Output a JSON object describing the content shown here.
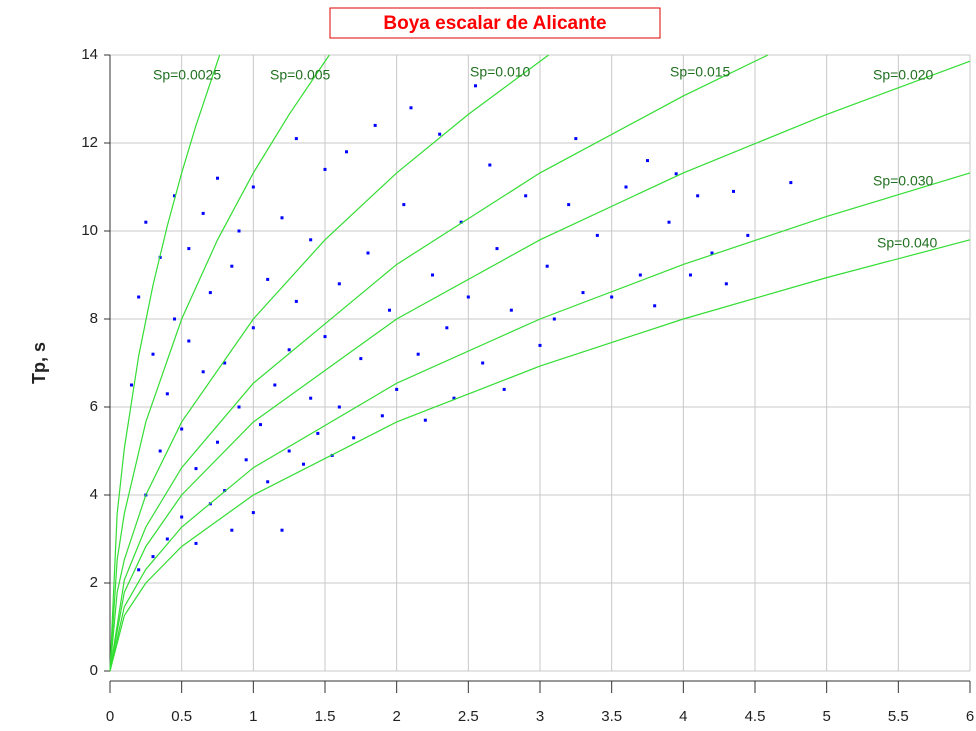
{
  "chart_data": {
    "type": "scatter",
    "title": "Boya escalar de Alicante",
    "y_label": "Tp, s",
    "xlim": [
      0,
      6
    ],
    "ylim": [
      0,
      14
    ],
    "xticks": [
      0,
      0.5,
      1,
      1.5,
      2,
      2.5,
      3,
      3.5,
      4,
      4.5,
      5,
      5.5,
      6
    ],
    "yticks": [
      0,
      2,
      4,
      6,
      8,
      10,
      12,
      14
    ],
    "grid": true,
    "color": "#0000ff",
    "x": [
      0.15,
      0.2,
      0.2,
      0.25,
      0.25,
      0.3,
      0.3,
      0.35,
      0.35,
      0.4,
      0.4,
      0.45,
      0.45,
      0.5,
      0.5,
      0.55,
      0.55,
      0.6,
      0.6,
      0.65,
      0.65,
      0.7,
      0.7,
      0.75,
      0.75,
      0.8,
      0.8,
      0.85,
      0.85,
      0.9,
      0.9,
      0.95,
      1.0,
      1.0,
      1.0,
      1.05,
      1.1,
      1.1,
      1.15,
      1.2,
      1.2,
      1.25,
      1.25,
      1.3,
      1.3,
      1.35,
      1.4,
      1.4,
      1.45,
      1.5,
      1.5,
      1.55,
      1.6,
      1.6,
      1.65,
      1.7,
      1.75,
      1.8,
      1.85,
      1.9,
      1.95,
      2.0,
      2.05,
      2.1,
      2.15,
      2.2,
      2.25,
      2.3,
      2.35,
      2.4,
      2.45,
      2.5,
      2.55,
      2.6,
      2.65,
      2.7,
      2.75,
      2.8,
      2.9,
      3.0,
      3.05,
      3.1,
      3.2,
      3.25,
      3.3,
      3.4,
      3.5,
      3.6,
      3.7,
      3.75,
      3.8,
      3.9,
      3.95,
      4.05,
      4.1,
      4.2,
      4.3,
      4.35,
      4.45,
      4.75
    ],
    "y": [
      6.5,
      2.3,
      8.5,
      4.0,
      10.2,
      2.6,
      7.2,
      5.0,
      9.4,
      3.0,
      6.3,
      8.0,
      10.8,
      3.5,
      5.5,
      7.5,
      9.6,
      2.9,
      4.6,
      6.8,
      10.4,
      3.8,
      8.6,
      5.2,
      11.2,
      4.1,
      7.0,
      9.2,
      3.2,
      6.0,
      10.0,
      4.8,
      3.6,
      7.8,
      11.0,
      5.6,
      8.9,
      4.3,
      6.5,
      3.2,
      10.3,
      5.0,
      7.3,
      12.1,
      8.4,
      4.7,
      6.2,
      9.8,
      5.4,
      7.6,
      11.4,
      4.9,
      8.8,
      6.0,
      11.8,
      5.3,
      7.1,
      9.5,
      12.4,
      5.8,
      8.2,
      6.4,
      10.6,
      12.8,
      7.2,
      5.7,
      9.0,
      12.2,
      7.8,
      6.2,
      10.2,
      8.5,
      13.3,
      7.0,
      11.5,
      9.6,
      6.4,
      8.2,
      10.8,
      7.4,
      9.2,
      8.0,
      10.6,
      12.1,
      8.6,
      9.9,
      8.5,
      11.0,
      9.0,
      11.6,
      8.3,
      10.2,
      11.3,
      9.0,
      10.8,
      9.5,
      8.8,
      10.9,
      9.9,
      11.1
    ],
    "curves": [
      {
        "name": "Sp=0.0025",
        "color": "#33dd33",
        "x": [
          0,
          0.05,
          0.1,
          0.2,
          0.3,
          0.4,
          0.5,
          0.6,
          0.765
        ],
        "y": [
          0,
          3.58,
          5.06,
          7.16,
          8.77,
          10.12,
          11.32,
          12.4,
          14.0
        ]
      },
      {
        "name": "Sp=0.005",
        "color": "#33dd33",
        "x": [
          0,
          0.05,
          0.1,
          0.25,
          0.5,
          0.75,
          1,
          1.25,
          1.53
        ],
        "y": [
          0,
          2.53,
          3.58,
          5.66,
          8.0,
          9.8,
          11.32,
          12.65,
          14.0
        ]
      },
      {
        "name": "Sp=0.010",
        "color": "#33dd33",
        "x": [
          0,
          0.05,
          0.1,
          0.25,
          0.5,
          1,
          1.5,
          2,
          2.5,
          3.06
        ],
        "y": [
          0,
          1.79,
          2.53,
          4.0,
          5.66,
          8.0,
          9.8,
          11.32,
          12.65,
          14.0
        ]
      },
      {
        "name": "Sp=0.015",
        "color": "#33dd33",
        "x": [
          0,
          0.1,
          0.25,
          0.5,
          1,
          2,
          3,
          4,
          4.59
        ],
        "y": [
          0,
          2.07,
          3.27,
          4.62,
          6.54,
          9.24,
          11.32,
          13.07,
          14.0
        ]
      },
      {
        "name": "Sp=0.020",
        "color": "#33dd33",
        "x": [
          0,
          0.1,
          0.25,
          0.5,
          1,
          2,
          3,
          4,
          5,
          6
        ],
        "y": [
          0,
          1.79,
          2.83,
          4.0,
          5.66,
          8.0,
          9.8,
          11.32,
          12.65,
          13.86
        ]
      },
      {
        "name": "Sp=0.030",
        "color": "#33dd33",
        "x": [
          0,
          0.1,
          0.25,
          0.5,
          1,
          2,
          3,
          4,
          5,
          6
        ],
        "y": [
          0,
          1.46,
          2.31,
          3.27,
          4.62,
          6.54,
          8.0,
          9.24,
          10.33,
          11.32
        ]
      },
      {
        "name": "Sp=0.040",
        "color": "#33dd33",
        "x": [
          0,
          0.1,
          0.25,
          0.5,
          1,
          2,
          3,
          4,
          5,
          6
        ],
        "y": [
          0,
          1.26,
          2.0,
          2.83,
          4.0,
          5.66,
          6.93,
          8.0,
          8.94,
          9.8
        ]
      }
    ]
  }
}
